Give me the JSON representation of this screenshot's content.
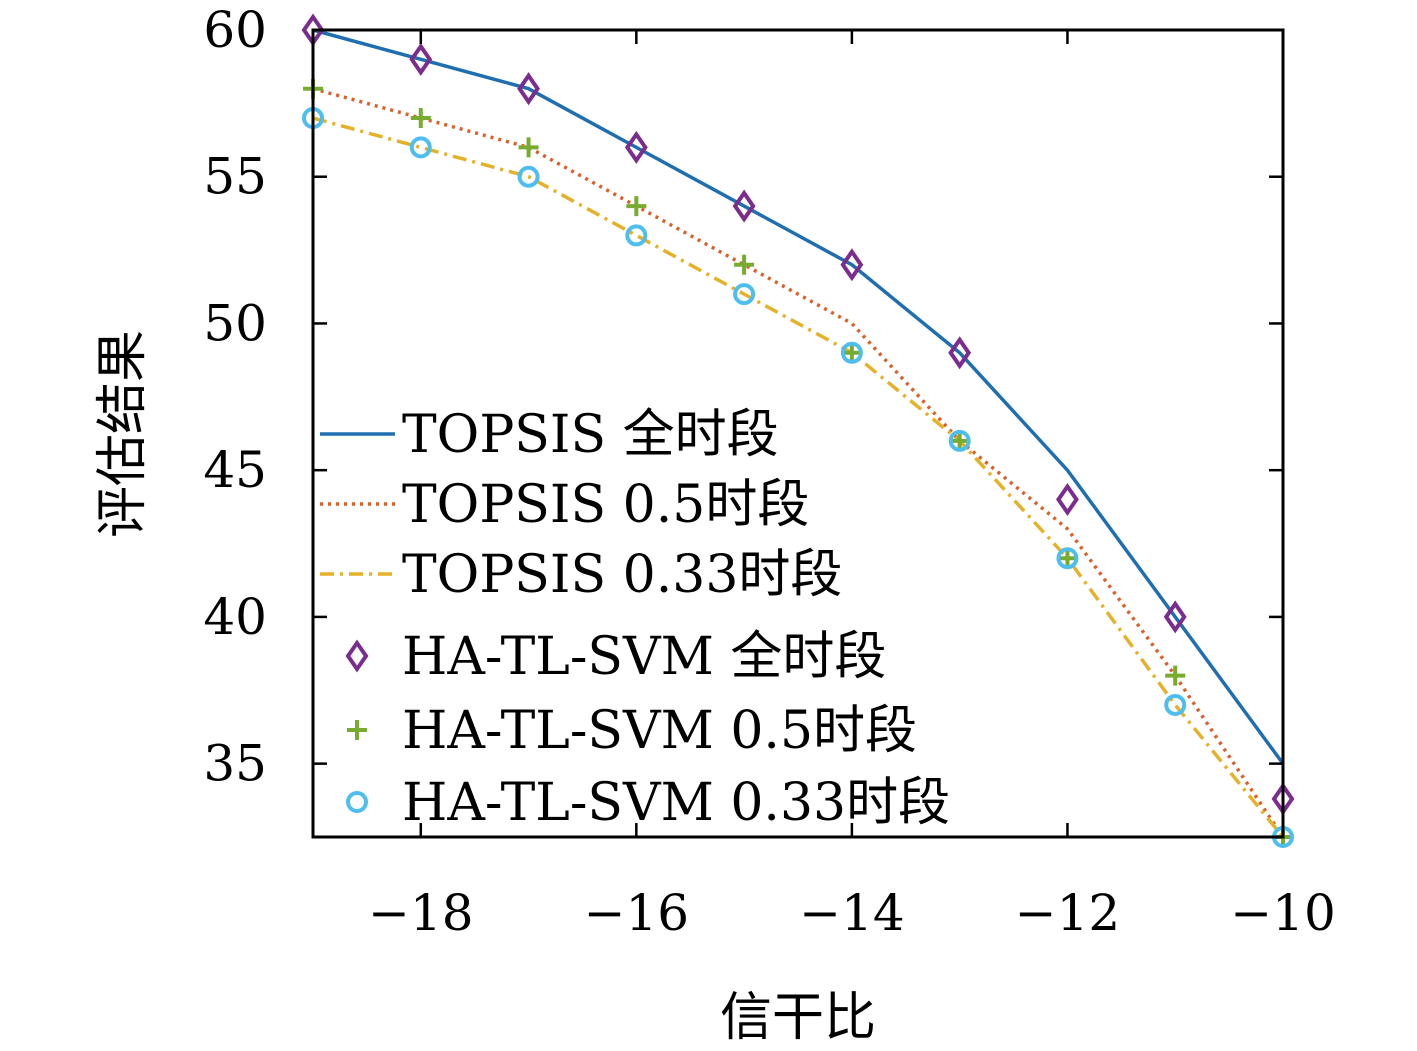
{
  "chart_data": {
    "type": "line",
    "title": "",
    "xlabel": "信干比",
    "ylabel": "评估结果",
    "xlim": [
      -19,
      -10
    ],
    "ylim": [
      32.5,
      60
    ],
    "xticks": [
      -18,
      -16,
      -14,
      -12,
      -10
    ],
    "xtick_labels": [
      "−18",
      "−16",
      "−14",
      "−12",
      "−10"
    ],
    "yticks": [
      35,
      40,
      45,
      50,
      55,
      60
    ],
    "ytick_labels": [
      "35",
      "40",
      "45",
      "50",
      "55",
      "60"
    ],
    "grid": false,
    "legend_position": "bottom-left",
    "x": [
      -19,
      -18,
      -17,
      -16,
      -15,
      -14,
      -13,
      -12,
      -11,
      -10
    ],
    "series": [
      {
        "name": "TOPSIS 全时段",
        "kind": "line",
        "style": "solid",
        "color": "#1f6fb0",
        "values": [
          60,
          59,
          58,
          56,
          54,
          52,
          49,
          45,
          40,
          35
        ]
      },
      {
        "name": "TOPSIS 0.5时段",
        "kind": "line",
        "style": "dotted",
        "color": "#d9602a",
        "values": [
          58,
          57,
          56,
          54,
          52,
          50,
          46,
          43,
          38,
          32.5
        ]
      },
      {
        "name": "TOPSIS 0.33时段",
        "kind": "line",
        "style": "dashdot",
        "color": "#e5b128",
        "values": [
          57,
          56,
          55,
          53,
          51,
          49,
          46,
          42,
          37,
          32.5
        ]
      },
      {
        "name": "HA-TL-SVM 全时段",
        "kind": "marker",
        "marker": "diamond",
        "color": "#7b2d8e",
        "values": [
          60,
          59,
          58,
          56,
          54,
          52,
          49,
          44,
          40,
          33.8
        ]
      },
      {
        "name": "HA-TL-SVM 0.5时段",
        "kind": "marker",
        "marker": "plus",
        "color": "#77ac30",
        "values": [
          58,
          57,
          56,
          54,
          52,
          49,
          46,
          42,
          38,
          32.5
        ]
      },
      {
        "name": "HA-TL-SVM 0.33时段",
        "kind": "marker",
        "marker": "circle",
        "color": "#4dbeee",
        "values": [
          57,
          56,
          55,
          53,
          51,
          49,
          46,
          42,
          37,
          32.5
        ]
      }
    ]
  }
}
